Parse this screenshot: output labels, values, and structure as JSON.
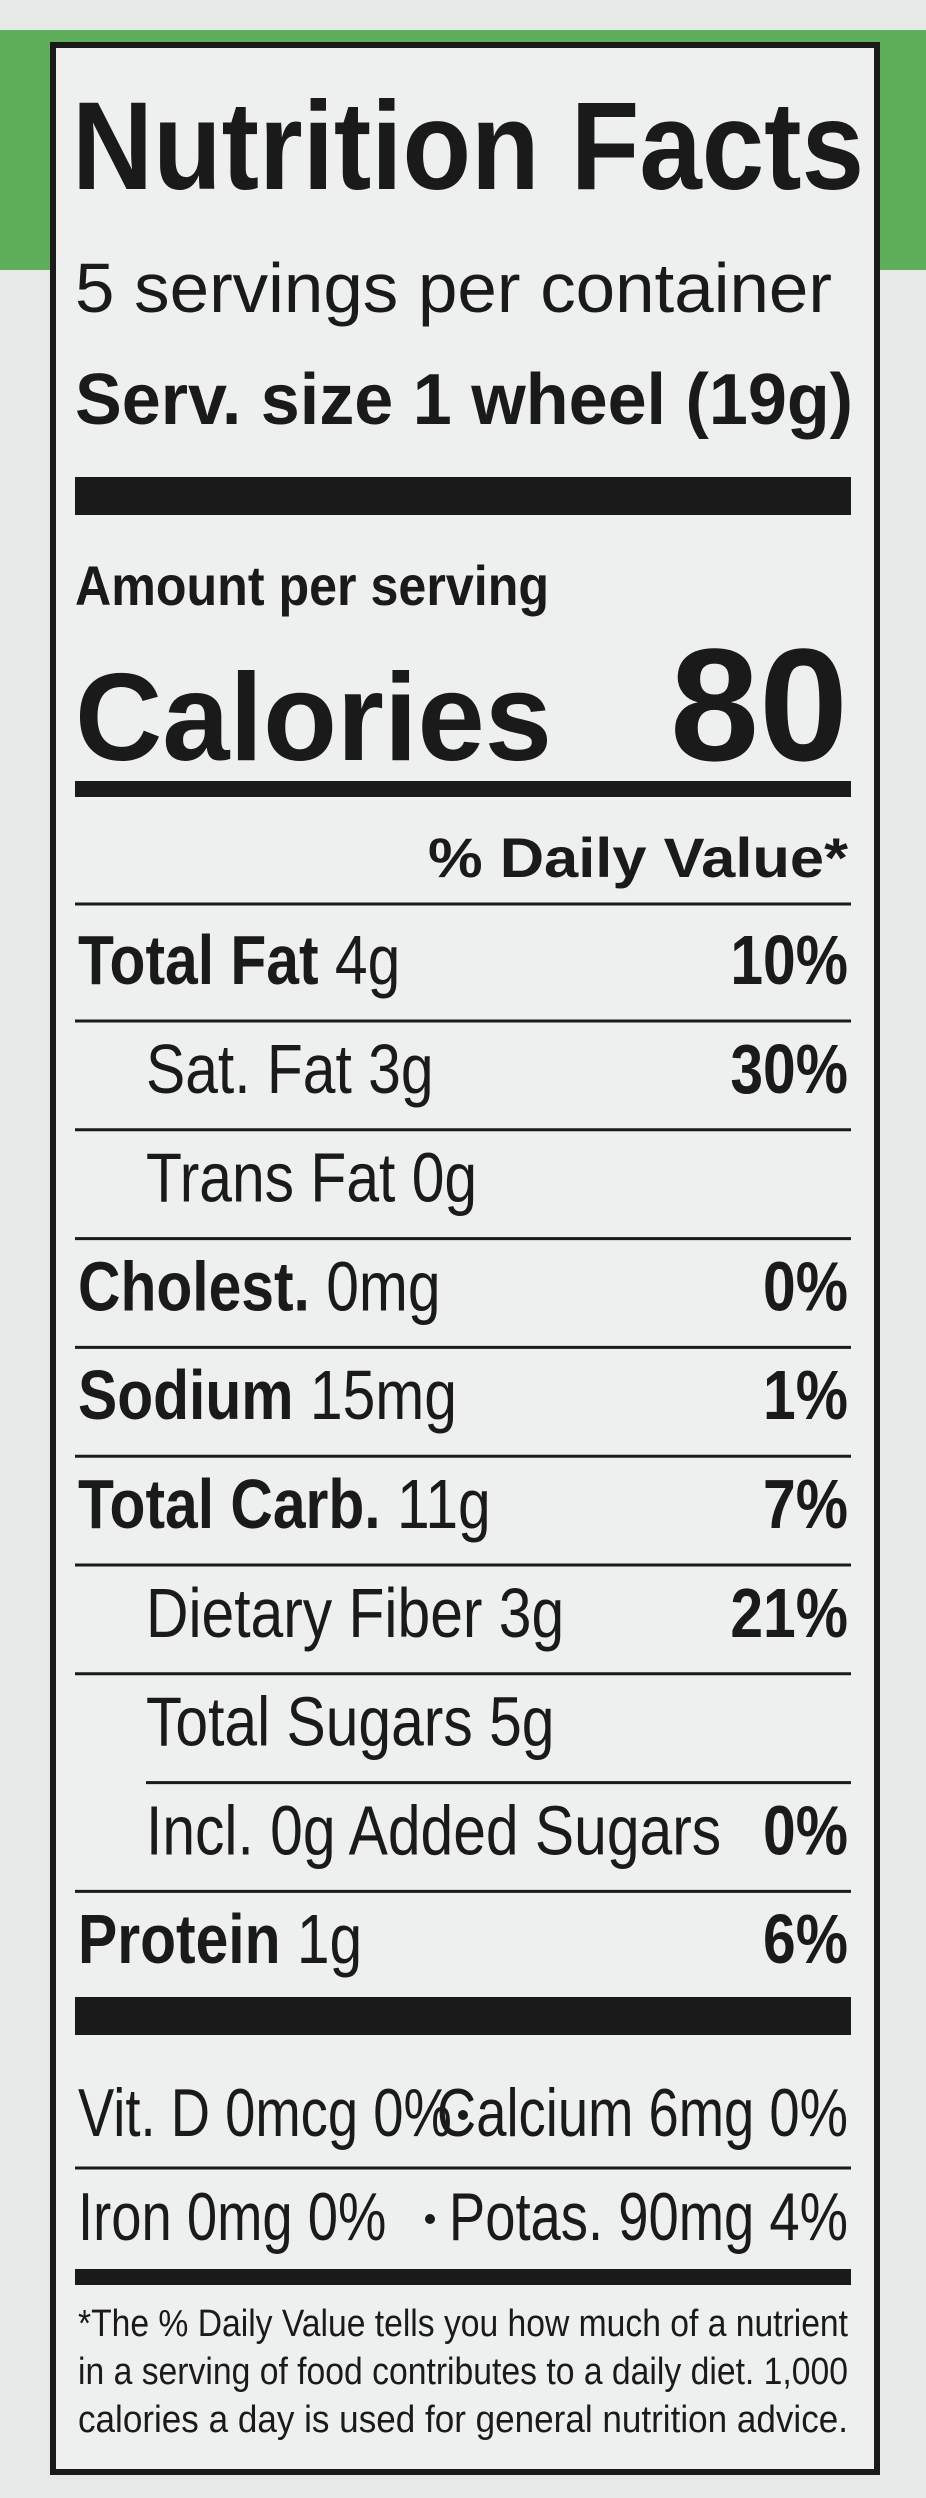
{
  "header": {
    "title": "Nutrition Facts",
    "servings": "5 servings per container",
    "serving_size": "Serv. size 1 wheel (19g)"
  },
  "calories": {
    "label_top": "Amount per serving",
    "label": "Calories",
    "value": "80"
  },
  "daily_value_header": "% Daily Value*",
  "rows": [
    {
      "name": "Total Fat",
      "amount": "4g",
      "dv": "10%",
      "indent": false
    },
    {
      "name": "Sat. Fat",
      "amount": "3g",
      "dv": "30%",
      "indent": true
    },
    {
      "name": "Trans Fat",
      "amount": "0g",
      "indent": true
    },
    {
      "name": "Cholest.",
      "amount": "0mg",
      "dv": "0%",
      "indent": false
    },
    {
      "name": "Sodium",
      "amount": "15mg",
      "dv": "1%",
      "indent": false
    },
    {
      "name": "Total Carb.",
      "amount": "11g",
      "dv": "7%",
      "indent": false
    },
    {
      "name": "Dietary Fiber",
      "amount": "3g",
      "dv": "21%",
      "indent": true
    },
    {
      "name": "Total Sugars",
      "amount": "5g",
      "indent": true
    },
    {
      "name": "Incl. 0g Added Sugars",
      "dv": "0%",
      "indent": true,
      "sub": true
    },
    {
      "name": "Protein",
      "amount": "1g",
      "dv": "6%",
      "indent": false
    }
  ],
  "micros": [
    [
      "Vit. D 0mcg 0%",
      "Calcium 6mg 0%"
    ],
    [
      "Iron 0mg 0%",
      "Potas. 90mg 4%"
    ]
  ],
  "footnote": [
    "*The % Daily Value tells you how much of a nutrient",
    "in a serving of food contributes to a daily diet. 1,000",
    "calories a day is used for general nutrition advice."
  ]
}
